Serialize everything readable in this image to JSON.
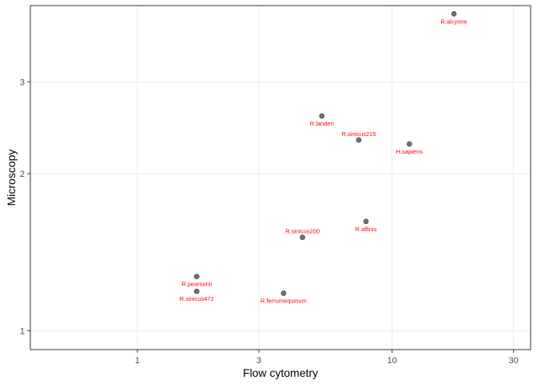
{
  "chart_data": {
    "type": "scatter",
    "title": "",
    "xlabel": "Flow cytometry",
    "ylabel": "Microscopy",
    "x_scale": "log10",
    "y_scale": "log10",
    "xlim": [
      0.38,
      35
    ],
    "ylim": [
      0.92,
      4.2
    ],
    "x_ticks": [
      {
        "value": 1,
        "label": "1"
      },
      {
        "value": 3,
        "label": "3"
      },
      {
        "value": 10,
        "label": "10"
      },
      {
        "value": 30,
        "label": "30"
      }
    ],
    "y_ticks": [
      {
        "value": 1,
        "label": "1"
      },
      {
        "value": 2,
        "label": "2"
      },
      {
        "value": 3,
        "label": "3"
      }
    ],
    "grid": true,
    "point_color": "#5a5a5a",
    "label_color": "#ff0000",
    "points": [
      {
        "label": "R.alcyone",
        "x": 17.5,
        "y": 4.05,
        "label_pos": "below"
      },
      {
        "label": "R.landeri",
        "x": 5.3,
        "y": 2.58,
        "label_pos": "below"
      },
      {
        "label": "R.sinicus215",
        "x": 7.4,
        "y": 2.32,
        "label_pos": "above"
      },
      {
        "label": "H.sapiens",
        "x": 11.7,
        "y": 2.28,
        "label_pos": "below"
      },
      {
        "label": "R.sinicus200",
        "x": 4.45,
        "y": 1.51,
        "label_pos": "above"
      },
      {
        "label": "R.affinis",
        "x": 7.9,
        "y": 1.62,
        "label_pos": "below"
      },
      {
        "label": "R.pearsonii",
        "x": 1.71,
        "y": 1.27,
        "label_pos": "below"
      },
      {
        "label": "R.sinicus472",
        "x": 1.71,
        "y": 1.19,
        "label_pos": "below"
      },
      {
        "label": "R.ferrumequinum",
        "x": 3.75,
        "y": 1.18,
        "label_pos": "below"
      }
    ]
  }
}
